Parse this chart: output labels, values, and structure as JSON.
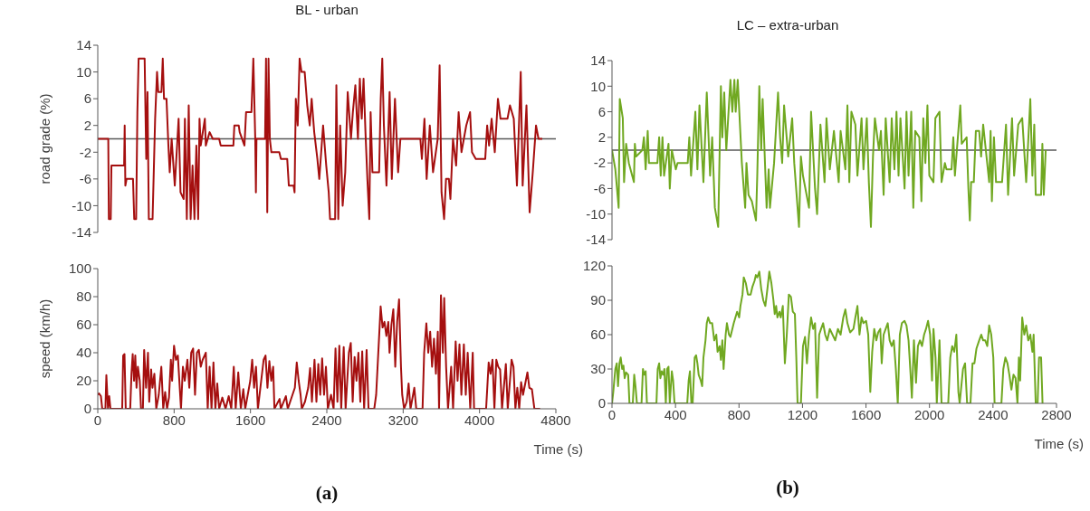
{
  "chart_data": [
    {
      "type": "line",
      "title": "BL - urban",
      "ylabel": "road grade (%)",
      "xlim": [
        0,
        4800
      ],
      "ylim": [
        -14,
        14
      ],
      "yticks": [
        -14,
        -10,
        -6,
        -2,
        2,
        6,
        10,
        14
      ],
      "tick_labels": "y",
      "ref_lines": [
        {
          "axis": "y",
          "value": 0,
          "color": "#595959"
        }
      ],
      "x": [
        0,
        110,
        116,
        136,
        143,
        276,
        282,
        289,
        302,
        369,
        382,
        402,
        415,
        428,
        491,
        508,
        521,
        535,
        574,
        601,
        621,
        634,
        667,
        681,
        694,
        720,
        740,
        754,
        774,
        807,
        847,
        867,
        900,
        913,
        933,
        953,
        973,
        993,
        1013,
        1033,
        1052,
        1066,
        1079,
        1122,
        1132,
        1172,
        1205,
        1272,
        1288,
        1371,
        1421,
        1431,
        1477,
        1487,
        1537,
        1554,
        1610,
        1630,
        1650,
        1657,
        1663,
        1753,
        1763,
        1776,
        1789,
        1803,
        1819,
        1902,
        1919,
        1985,
        2002,
        2052,
        2062,
        2075,
        2095,
        2115,
        2135,
        2168,
        2195,
        2221,
        2241,
        2268,
        2301,
        2321,
        2361,
        2394,
        2420,
        2434,
        2487,
        2500,
        2520,
        2540,
        2566,
        2593,
        2619,
        2653,
        2673,
        2699,
        2726,
        2746,
        2766,
        2785,
        2805,
        2825,
        2845,
        2859,
        2878,
        2948,
        2965,
        2981,
        2998,
        3025,
        3058,
        3081,
        3114,
        3147,
        3171,
        3380,
        3396,
        3423,
        3446,
        3479,
        3513,
        3562,
        3582,
        3602,
        3629,
        3649,
        3679,
        3695,
        3722,
        3755,
        3781,
        3811,
        3861,
        3901,
        3921,
        3961,
        4060,
        4080,
        4100,
        4127,
        4160,
        4193,
        4220,
        4293,
        4319,
        4359,
        4392,
        4432,
        4452,
        4492,
        4525,
        4558,
        4592,
        4618,
        4658
      ],
      "series": [
        {
          "color": "#a50f0f",
          "values": [
            0,
            0,
            -12,
            -12,
            -4,
            -4,
            2,
            -7,
            -6,
            -6,
            -12,
            -12,
            4,
            12,
            12,
            -3,
            7,
            -12,
            -12,
            3,
            10,
            7,
            7,
            12,
            6,
            6,
            -1,
            -5,
            0,
            -7,
            3,
            -8,
            -9,
            3,
            -12,
            5,
            -12,
            -4,
            -12,
            -1,
            -12,
            3,
            -1,
            3,
            -1,
            1,
            0,
            0,
            -1,
            -1,
            -1,
            2,
            2,
            1,
            -1,
            4,
            4,
            12,
            0,
            -8,
            0,
            0,
            12,
            -11,
            12,
            0,
            -2,
            -2,
            -3,
            -3,
            -7,
            -7,
            -8,
            6,
            2,
            12,
            10,
            10,
            5,
            2,
            6,
            1,
            -3,
            -6,
            2,
            -4,
            -8,
            -12,
            -12,
            8,
            -12,
            2,
            -10,
            -5,
            7,
            0,
            4,
            8,
            0,
            9,
            3,
            9,
            1,
            -6,
            -12,
            4,
            -5,
            -5,
            6,
            12,
            2,
            -7,
            7,
            -6,
            6,
            -5,
            0,
            0,
            -3,
            3,
            -6,
            2,
            -5,
            0,
            11,
            -8,
            -12,
            -6,
            -6,
            -9,
            0,
            -4,
            4,
            -2,
            2,
            4,
            -2,
            -3,
            -3,
            2,
            -1,
            3,
            -2,
            6,
            3,
            3,
            5,
            3,
            -7,
            10,
            -7,
            5,
            -11,
            -5,
            2,
            0,
            0
          ]
        }
      ]
    },
    {
      "type": "line",
      "title": "LC – extra-urban",
      "xlim": [
        0,
        2800
      ],
      "ylim": [
        -14,
        14
      ],
      "yticks": [
        -14,
        -10,
        -6,
        -2,
        2,
        6,
        10,
        14
      ],
      "tick_labels": "y",
      "ref_lines": [
        {
          "axis": "y",
          "value": 0,
          "color": "#595959"
        }
      ],
      "x": [
        0,
        21,
        42,
        49,
        68,
        76,
        89,
        106,
        138,
        144,
        152,
        191,
        201,
        212,
        225,
        233,
        286,
        297,
        307,
        318,
        328,
        356,
        364,
        377,
        402,
        413,
        477,
        487,
        498,
        525,
        538,
        551,
        576,
        597,
        618,
        631,
        648,
        669,
        686,
        695,
        707,
        720,
        746,
        758,
        771,
        779,
        792,
        818,
        839,
        847,
        860,
        881,
        907,
        915,
        928,
        940,
        949,
        974,
        987,
        995,
        1021,
        1046,
        1059,
        1072,
        1084,
        1110,
        1135,
        1148,
        1178,
        1190,
        1203,
        1241,
        1254,
        1279,
        1292,
        1313,
        1339,
        1351,
        1372,
        1398,
        1428,
        1440,
        1470,
        1483,
        1495,
        1508,
        1533,
        1546,
        1572,
        1584,
        1605,
        1618,
        1631,
        1644,
        1656,
        1682,
        1694,
        1711,
        1724,
        1749,
        1762,
        1779,
        1792,
        1805,
        1817,
        1843,
        1855,
        1868,
        1885,
        1898,
        1910,
        1936,
        1949,
        1961,
        1974,
        1987,
        1999,
        2025,
        2037,
        2063,
        2076,
        2097,
        2107,
        2139,
        2150,
        2160,
        2194,
        2203,
        2234,
        2245,
        2254,
        2262,
        2279,
        2292,
        2313,
        2325,
        2338,
        2376,
        2385,
        2393,
        2406,
        2419,
        2457,
        2482,
        2495,
        2520,
        2533,
        2559,
        2584,
        2609,
        2635,
        2648,
        2660,
        2669,
        2703,
        2711,
        2720,
        2732
      ],
      "series": [
        {
          "color": "#70a821",
          "values": [
            0,
            -3,
            -9,
            8,
            5,
            -5,
            1,
            -2,
            -5,
            1,
            -1,
            0,
            2,
            -3,
            3,
            -2,
            -2,
            2,
            -4,
            2,
            -4,
            1,
            -6,
            0,
            -3,
            -2,
            -2,
            2,
            -4,
            6,
            -3,
            7,
            -5,
            9,
            -4,
            2,
            -9,
            -12,
            10,
            2,
            9,
            0,
            11,
            6,
            11,
            6,
            11,
            -2,
            -9,
            -2,
            -7,
            -8,
            -11,
            -4,
            10,
            0,
            8,
            -9,
            -3,
            -9,
            -2,
            9,
            2,
            -2,
            7,
            -1,
            5,
            -2,
            -12,
            -1,
            -4,
            -9,
            6,
            -6,
            -10,
            4,
            -5,
            5,
            -3,
            3,
            -5,
            3,
            -3,
            7,
            -5,
            6,
            4,
            -4,
            5,
            -3,
            5,
            -5,
            -12,
            -1,
            5,
            0,
            3,
            -7,
            5,
            -5,
            5,
            -3,
            6,
            -4,
            5,
            -6,
            6,
            -4,
            6,
            -9,
            3,
            2,
            -8,
            5,
            -2,
            7,
            -4,
            -5,
            5,
            6,
            -5,
            -2,
            -3,
            -3,
            2,
            -4,
            7,
            1,
            2,
            -6,
            -11,
            -5,
            -5,
            3,
            3,
            -1,
            4,
            -5,
            3,
            -8,
            2,
            -5,
            -5,
            4,
            -7,
            5,
            -4,
            4,
            5,
            -5,
            8,
            -4,
            4,
            -7,
            -7,
            1,
            -7,
            0
          ]
        }
      ]
    },
    {
      "type": "line",
      "ylabel": "speed (km/h)",
      "xlabel": "Time (s)",
      "xlim": [
        0,
        4800
      ],
      "xticks": [
        0,
        800,
        1600,
        2400,
        3200,
        4000,
        4800
      ],
      "ylim": [
        0,
        100
      ],
      "yticks": [
        0,
        20,
        40,
        60,
        80,
        100
      ],
      "annotations": [
        "(a)"
      ],
      "x": [
        0,
        13,
        33,
        47,
        80,
        90,
        107,
        120,
        133,
        256,
        266,
        280,
        293,
        340,
        353,
        366,
        380,
        393,
        406,
        420,
        440,
        453,
        473,
        486,
        506,
        526,
        539,
        559,
        573,
        593,
        613,
        639,
        666,
        686,
        706,
        726,
        746,
        766,
        779,
        799,
        819,
        839,
        859,
        872,
        892,
        912,
        939,
        959,
        979,
        999,
        1019,
        1039,
        1059,
        1079,
        1099,
        1119,
        1132,
        1152,
        1172,
        1192,
        1212,
        1232,
        1252,
        1272,
        1305,
        1339,
        1372,
        1399,
        1425,
        1445,
        1472,
        1499,
        1525,
        1545,
        1598,
        1618,
        1638,
        1658,
        1678,
        1738,
        1758,
        1778,
        1798,
        1818,
        1838,
        1851,
        1905,
        1918,
        1971,
        1991,
        2065,
        2085,
        2105,
        2125,
        2138,
        2171,
        2205,
        2225,
        2244,
        2271,
        2291,
        2311,
        2331,
        2351,
        2371,
        2391,
        2411,
        2444,
        2471,
        2491,
        2511,
        2531,
        2551,
        2577,
        2597,
        2631,
        2651,
        2671,
        2691,
        2711,
        2731,
        2751,
        2771,
        2791,
        2817,
        2837,
        2870,
        2897,
        2917,
        2964,
        2984,
        3004,
        3024,
        3044,
        3057,
        3077,
        3097,
        3117,
        3137,
        3157,
        3177,
        3190,
        3210,
        3237,
        3257,
        3277,
        3317,
        3337,
        3403,
        3420,
        3443,
        3463,
        3483,
        3503,
        3523,
        3543,
        3563,
        3576,
        3596,
        3616,
        3630,
        3650,
        3670,
        3703,
        3723,
        3750,
        3770,
        3790,
        3810,
        3836,
        3856,
        3876,
        3903,
        3929,
        3943,
        4069,
        4096,
        4116,
        4136,
        4156,
        4176,
        4196,
        4216,
        4236,
        4276,
        4296,
        4336,
        4356,
        4376,
        4396,
        4416,
        4436,
        4456,
        4482,
        4502,
        4522,
        4549,
        4575,
        4635
      ],
      "series": [
        {
          "color": "#a50f0f",
          "values": [
            10,
            11,
            9,
            0,
            0,
            24,
            0,
            9,
            0,
            0,
            38,
            39,
            0,
            0,
            25,
            39,
            20,
            38,
            15,
            30,
            20,
            0,
            0,
            42,
            15,
            40,
            5,
            28,
            15,
            25,
            0,
            10,
            30,
            0,
            12,
            0,
            8,
            35,
            20,
            45,
            35,
            38,
            15,
            0,
            30,
            20,
            35,
            15,
            40,
            43,
            10,
            40,
            42,
            30,
            35,
            38,
            40,
            0,
            30,
            0,
            33,
            0,
            18,
            0,
            8,
            0,
            9,
            0,
            30,
            0,
            26,
            0,
            14,
            0,
            20,
            35,
            15,
            30,
            0,
            35,
            38,
            15,
            34,
            20,
            30,
            0,
            7,
            0,
            9,
            0,
            15,
            33,
            20,
            10,
            0,
            5,
            15,
            29,
            5,
            35,
            5,
            32,
            10,
            36,
            10,
            30,
            0,
            10,
            0,
            43,
            5,
            45,
            0,
            44,
            0,
            40,
            47,
            5,
            37,
            20,
            40,
            5,
            41,
            0,
            42,
            0,
            0,
            0,
            10,
            73,
            58,
            62,
            52,
            62,
            40,
            60,
            71,
            30,
            62,
            78,
            30,
            10,
            0,
            5,
            18,
            0,
            15,
            0,
            0,
            40,
            61,
            40,
            55,
            30,
            50,
            25,
            55,
            0,
            81,
            40,
            79,
            30,
            0,
            30,
            0,
            48,
            20,
            46,
            10,
            46,
            10,
            40,
            0,
            40,
            0,
            0,
            33,
            25,
            35,
            0,
            35,
            30,
            28,
            0,
            32,
            0,
            35,
            30,
            0,
            15,
            0,
            19,
            10,
            19,
            26,
            15,
            14,
            0,
            0
          ]
        }
      ]
    },
    {
      "type": "line",
      "xlabel": "Time (s)",
      "xlim": [
        0,
        2800
      ],
      "xticks": [
        0,
        400,
        800,
        1200,
        1600,
        2000,
        2400,
        2800
      ],
      "ylim": [
        0,
        120
      ],
      "yticks": [
        0,
        30,
        60,
        90,
        120
      ],
      "annotations": [
        "(b)"
      ],
      "x": [
        0,
        8,
        21,
        30,
        38,
        47,
        55,
        64,
        72,
        80,
        89,
        102,
        110,
        131,
        140,
        148,
        157,
        186,
        195,
        203,
        212,
        220,
        280,
        288,
        297,
        305,
        313,
        322,
        330,
        339,
        347,
        356,
        364,
        377,
        385,
        394,
        474,
        483,
        491,
        500,
        508,
        521,
        530,
        538,
        546,
        559,
        568,
        576,
        589,
        597,
        606,
        618,
        631,
        644,
        657,
        665,
        678,
        686,
        695,
        703,
        716,
        724,
        737,
        746,
        767,
        788,
        801,
        809,
        822,
        830,
        843,
        856,
        873,
        885,
        898,
        906,
        915,
        928,
        940,
        953,
        966,
        979,
        991,
        1004,
        1017,
        1025,
        1034,
        1042,
        1055,
        1063,
        1076,
        1089,
        1101,
        1114,
        1127,
        1139,
        1152,
        1161,
        1169,
        1190,
        1203,
        1216,
        1228,
        1241,
        1254,
        1267,
        1279,
        1292,
        1305,
        1317,
        1330,
        1343,
        1356,
        1372,
        1389,
        1406,
        1423,
        1440,
        1457,
        1470,
        1483,
        1500,
        1521,
        1533,
        1546,
        1559,
        1572,
        1584,
        1601,
        1614,
        1627,
        1639,
        1652,
        1665,
        1677,
        1690,
        1699,
        1711,
        1724,
        1737,
        1749,
        1762,
        1775,
        1788,
        1800,
        1813,
        1826,
        1843,
        1855,
        1868,
        1881,
        1889,
        1902,
        1915,
        1927,
        1940,
        1953,
        1966,
        1978,
        1991,
        2004,
        2016,
        2025,
        2038,
        2046,
        2063,
        2076,
        2118,
        2131,
        2143,
        2156,
        2169,
        2182,
        2190,
        2211,
        2224,
        2237,
        2258,
        2271,
        2283,
        2296,
        2313,
        2326,
        2338,
        2351,
        2364,
        2376,
        2389,
        2402,
        2410,
        2453,
        2465,
        2478,
        2491,
        2503,
        2516,
        2529,
        2542,
        2554,
        2563,
        2571,
        2584,
        2597,
        2609,
        2622,
        2635,
        2648,
        2656,
        2669,
        2681,
        2690,
        2703,
        2712
      ],
      "series": [
        {
          "color": "#70a821",
          "values": [
            0,
            10,
            30,
            35,
            15,
            35,
            40,
            30,
            33,
            22,
            27,
            25,
            0,
            0,
            25,
            15,
            0,
            0,
            30,
            25,
            28,
            0,
            0,
            30,
            35,
            22,
            28,
            25,
            30,
            0,
            30,
            32,
            0,
            28,
            20,
            0,
            0,
            20,
            28,
            0,
            0,
            40,
            42,
            35,
            25,
            20,
            15,
            40,
            55,
            70,
            75,
            70,
            70,
            55,
            60,
            45,
            50,
            38,
            55,
            30,
            60,
            70,
            60,
            58,
            70,
            80,
            75,
            85,
            95,
            110,
            105,
            95,
            95,
            102,
            107,
            112,
            110,
            115,
            100,
            90,
            85,
            100,
            115,
            105,
            90,
            78,
            85,
            75,
            80,
            75,
            85,
            35,
            60,
            95,
            93,
            80,
            78,
            40,
            0,
            0,
            50,
            58,
            35,
            60,
            75,
            65,
            70,
            5,
            60,
            65,
            70,
            60,
            55,
            65,
            60,
            55,
            65,
            60,
            75,
            82,
            70,
            62,
            65,
            75,
            85,
            60,
            75,
            70,
            72,
            60,
            10,
            45,
            65,
            55,
            62,
            65,
            35,
            60,
            65,
            70,
            55,
            50,
            55,
            30,
            0,
            60,
            70,
            72,
            68,
            55,
            25,
            5,
            55,
            18,
            50,
            55,
            50,
            60,
            65,
            72,
            60,
            20,
            65,
            40,
            0,
            55,
            0,
            0,
            40,
            50,
            45,
            60,
            10,
            0,
            30,
            35,
            0,
            0,
            35,
            35,
            48,
            55,
            60,
            55,
            55,
            50,
            68,
            60,
            40,
            0,
            0,
            30,
            40,
            35,
            25,
            12,
            25,
            22,
            0,
            40,
            20,
            75,
            60,
            68,
            55,
            60,
            45,
            60,
            0,
            0,
            40,
            40,
            0
          ]
        }
      ]
    }
  ]
}
